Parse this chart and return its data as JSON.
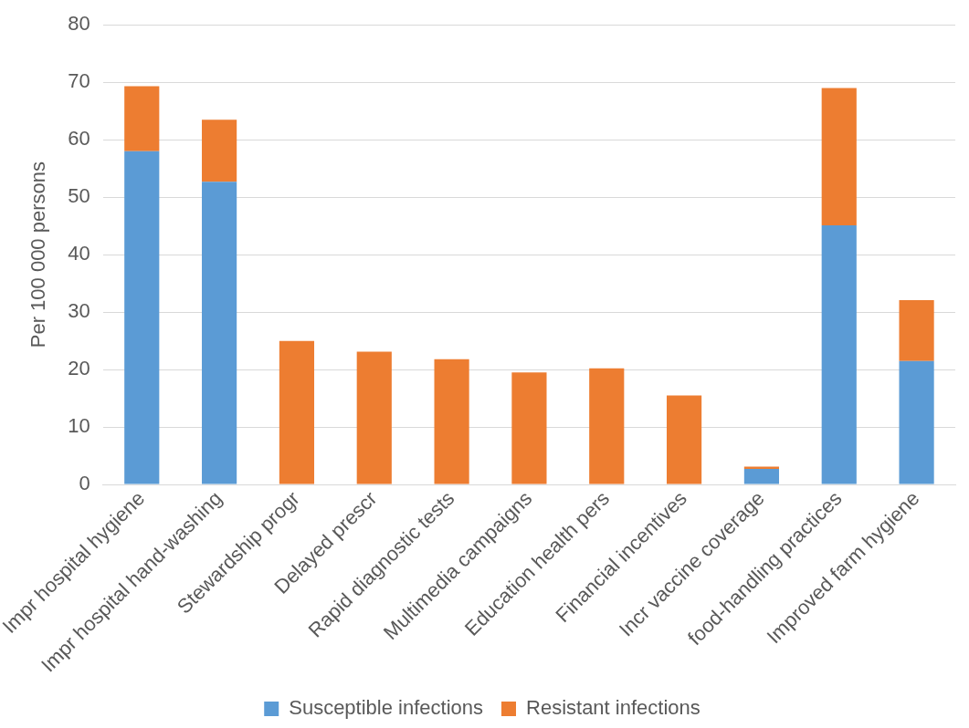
{
  "chart_data": {
    "type": "bar",
    "stacked": true,
    "ylabel": "Per 100 000 persons",
    "categories": [
      "Impr hospital hygiene",
      "Impr hospital hand-washing",
      "Stewardship progr",
      "Delayed prescr",
      "Rapid diagnostic tests",
      "Multimedia campaigns",
      "Education health pers",
      "Financial incentives",
      "Incr vaccine coverage",
      "food-handling practices",
      "Improved farm hygiene"
    ],
    "series": [
      {
        "name": "Susceptible infections",
        "color": "#5b9bd5",
        "values": [
          58,
          52.7,
          0,
          0,
          0,
          0,
          0,
          0,
          2.7,
          45.1,
          21.5
        ]
      },
      {
        "name": "Resistant infections",
        "color": "#ed7d31",
        "values": [
          11.3,
          10.8,
          25,
          23.1,
          21.8,
          19.5,
          20.2,
          15.5,
          0.4,
          23.9,
          10.6
        ]
      }
    ],
    "ylim": [
      0,
      80
    ],
    "yticks": [
      0,
      10,
      20,
      30,
      40,
      50,
      60,
      70,
      80
    ],
    "grid": "y",
    "legend": "bottom"
  }
}
